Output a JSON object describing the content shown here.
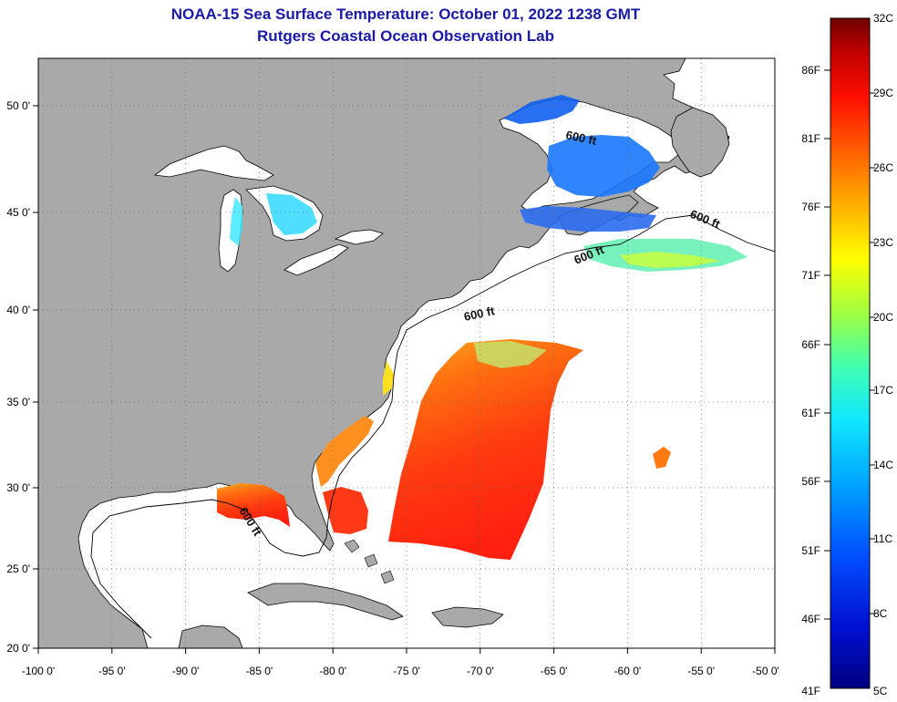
{
  "title": "NOAA-15 Sea Surface Temperature:  October 01, 2022 1238 GMT",
  "subtitle": "Rutgers Coastal Ocean Observation Lab",
  "lon_labels": [
    "-100 0'",
    "-95 0'",
    "-90 0'",
    "-85 0'",
    "-80 0'",
    "-75 0'",
    "-70 0'",
    "-65 0'",
    "-60 0'",
    "-55 0'",
    "-50 0'"
  ],
  "lat_labels": [
    "50 0'",
    "45 0'",
    "40 0'",
    "35 0'",
    "30 0'",
    "25 0'",
    "20 0'"
  ],
  "contour_label": "600 ft",
  "colorbar": {
    "celsius": [
      "32C",
      "29C",
      "26C",
      "23C",
      "20C",
      "17C",
      "14C",
      "11C",
      "8C",
      "5C"
    ],
    "fahrenheit": [
      "86F",
      "81F",
      "76F",
      "71F",
      "66F",
      "61F",
      "56F",
      "51F",
      "46F",
      "41F"
    ],
    "colors": [
      "#7a0000",
      "#c80000",
      "#ff3000",
      "#ff8a00",
      "#ffd800",
      "#d8ff20",
      "#80ff60",
      "#20ffd0",
      "#00c0ff",
      "#0070ff",
      "#0020e0",
      "#000090"
    ]
  },
  "colors": {
    "land": "#a9a9a9",
    "water": "#ffffff",
    "title": "#1a1aa6"
  }
}
